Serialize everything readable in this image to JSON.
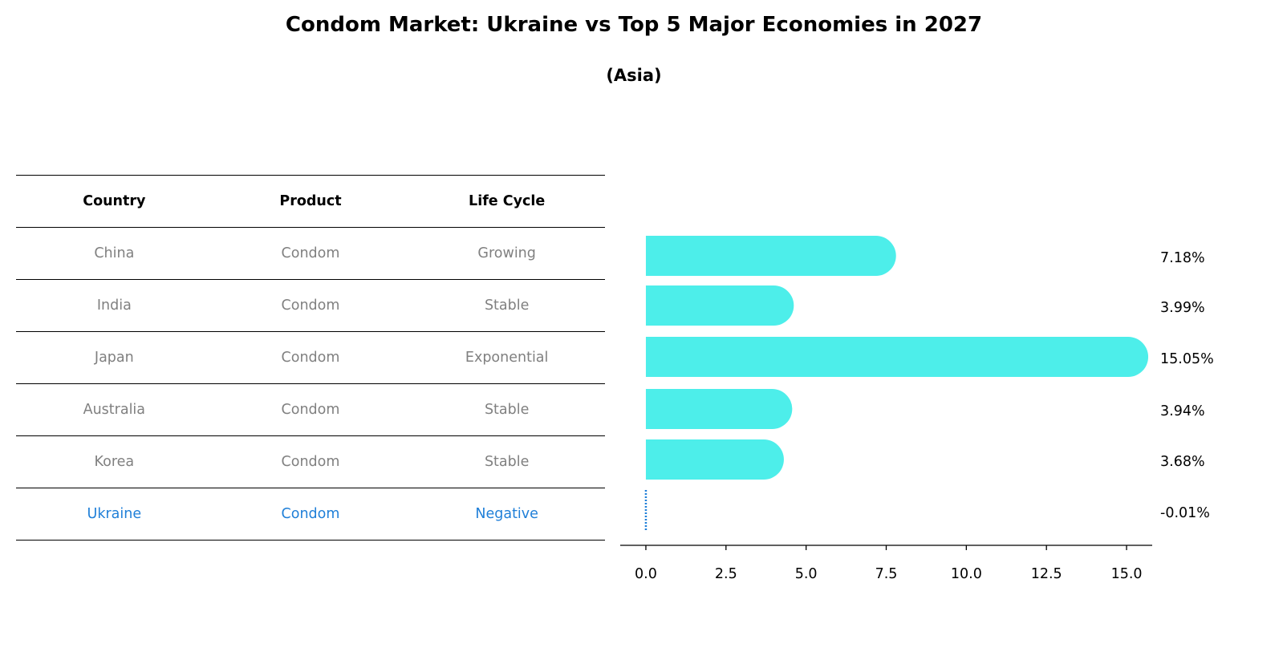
{
  "title": "Condom Market: Ukraine vs Top 5 Major Economies in 2027",
  "subtitle": "(Asia)",
  "table": {
    "headers": [
      "Country",
      "Product",
      "Life Cycle"
    ],
    "rows": [
      [
        "China",
        "Condom",
        "Growing"
      ],
      [
        "India",
        "Condom",
        "Stable"
      ],
      [
        "Japan",
        "Condom",
        "Exponential"
      ],
      [
        "Australia",
        "Condom",
        "Stable"
      ],
      [
        "Korea",
        "Condom",
        "Stable"
      ],
      [
        "Ukraine",
        "Condom",
        "Negative"
      ]
    ]
  },
  "chart_data": {
    "type": "bar",
    "orientation": "horizontal",
    "categories": [
      "China",
      "India",
      "Japan",
      "Australia",
      "Korea",
      "Ukraine"
    ],
    "values": [
      7.18,
      3.99,
      15.05,
      3.94,
      3.68,
      -0.01
    ],
    "value_labels": [
      "7.18%",
      "3.99%",
      "15.05%",
      "3.94%",
      "3.68%",
      "-0.01%"
    ],
    "xlim": [
      -0.8,
      15.8
    ],
    "xticks": [
      "0.0",
      "2.5",
      "5.0",
      "7.5",
      "10.0",
      "12.5",
      "15.0"
    ],
    "xtick_values": [
      0,
      2.5,
      5,
      7.5,
      10,
      12.5,
      15
    ],
    "colors": {
      "bar": "#4deeea",
      "highlight": "#1f7fd8"
    }
  }
}
